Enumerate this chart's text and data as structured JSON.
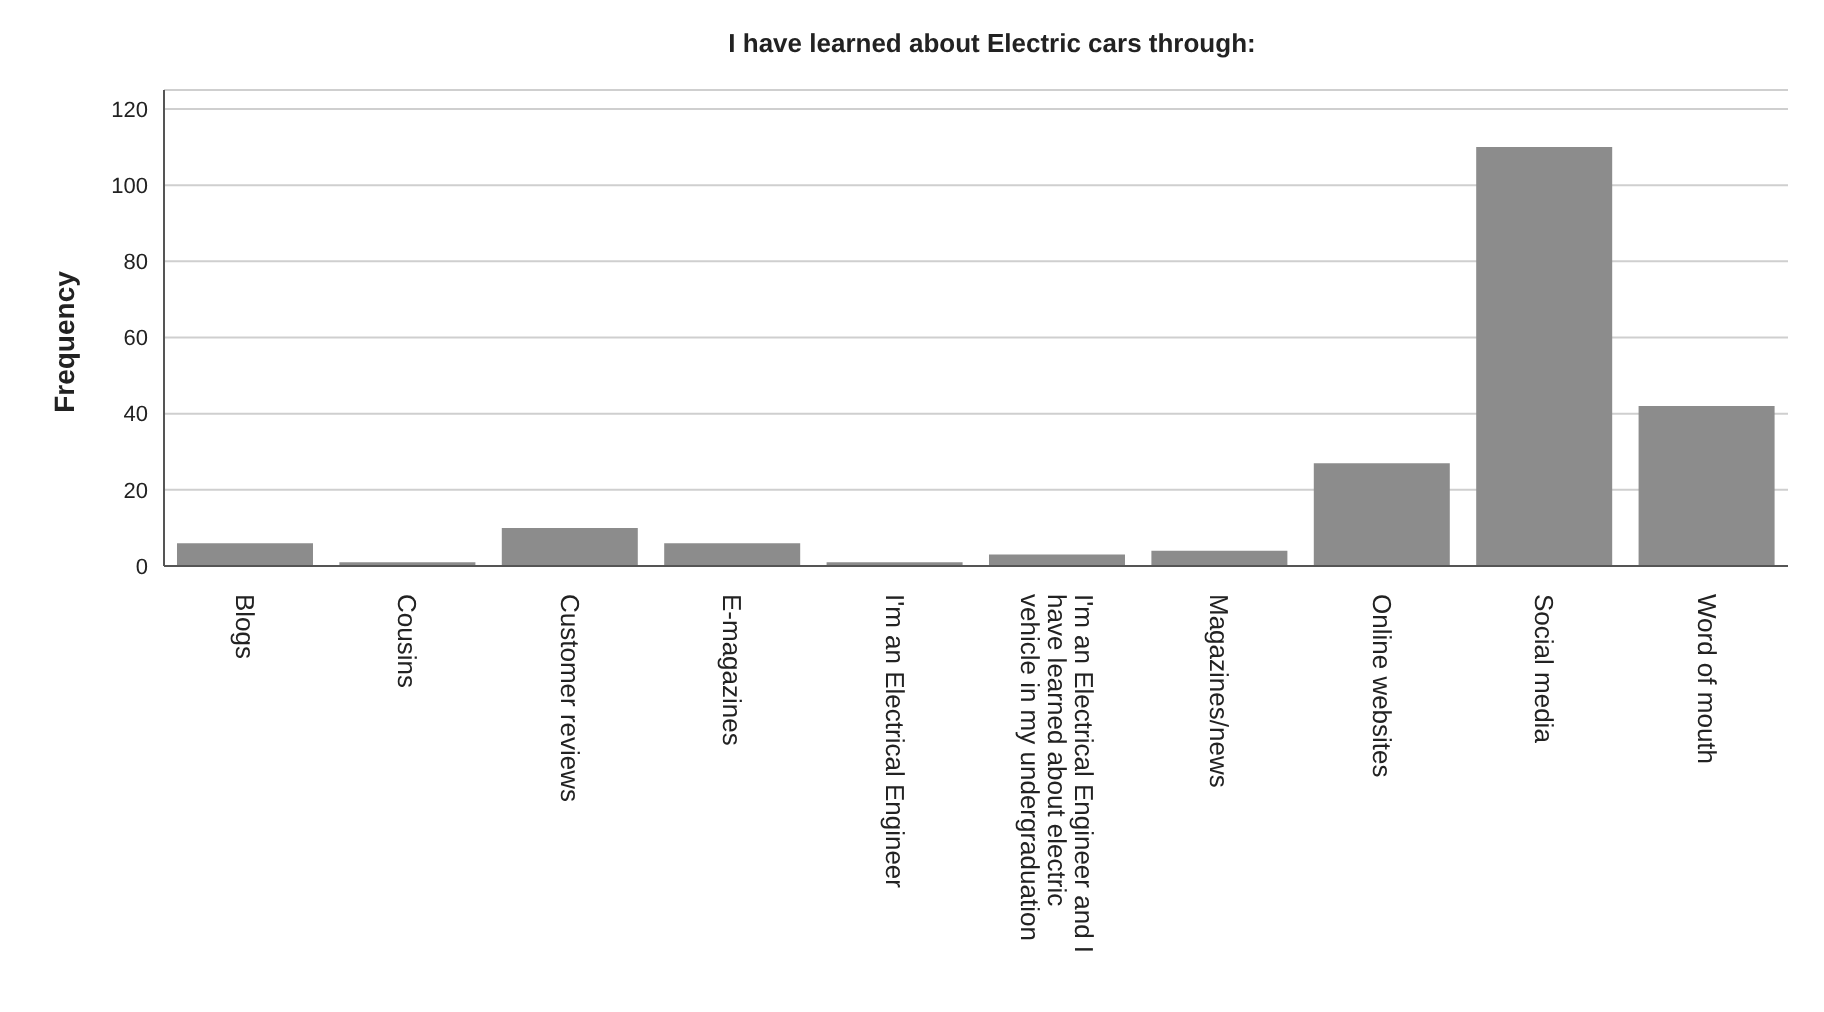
{
  "chart_data": {
    "type": "bar",
    "title": "I have learned about Electric cars through:",
    "ylabel": "Frequency",
    "categories": [
      "Blogs",
      "Cousins",
      "Customer reviews",
      "E-magazines",
      "I'm an Electrical Engineer",
      "I'm an Electrical Engineer and I have learned about electric vehicle in my undergraduation",
      "Magazines/news",
      "Online websites",
      "Social media",
      "Word of mouth"
    ],
    "values": [
      6,
      1,
      10,
      6,
      1,
      3,
      4,
      27,
      110,
      42
    ],
    "color": "#8c8c8c",
    "ylim": [
      0,
      125
    ],
    "yticks": [
      0,
      20,
      40,
      60,
      80,
      100,
      120
    ],
    "grid": "y"
  }
}
